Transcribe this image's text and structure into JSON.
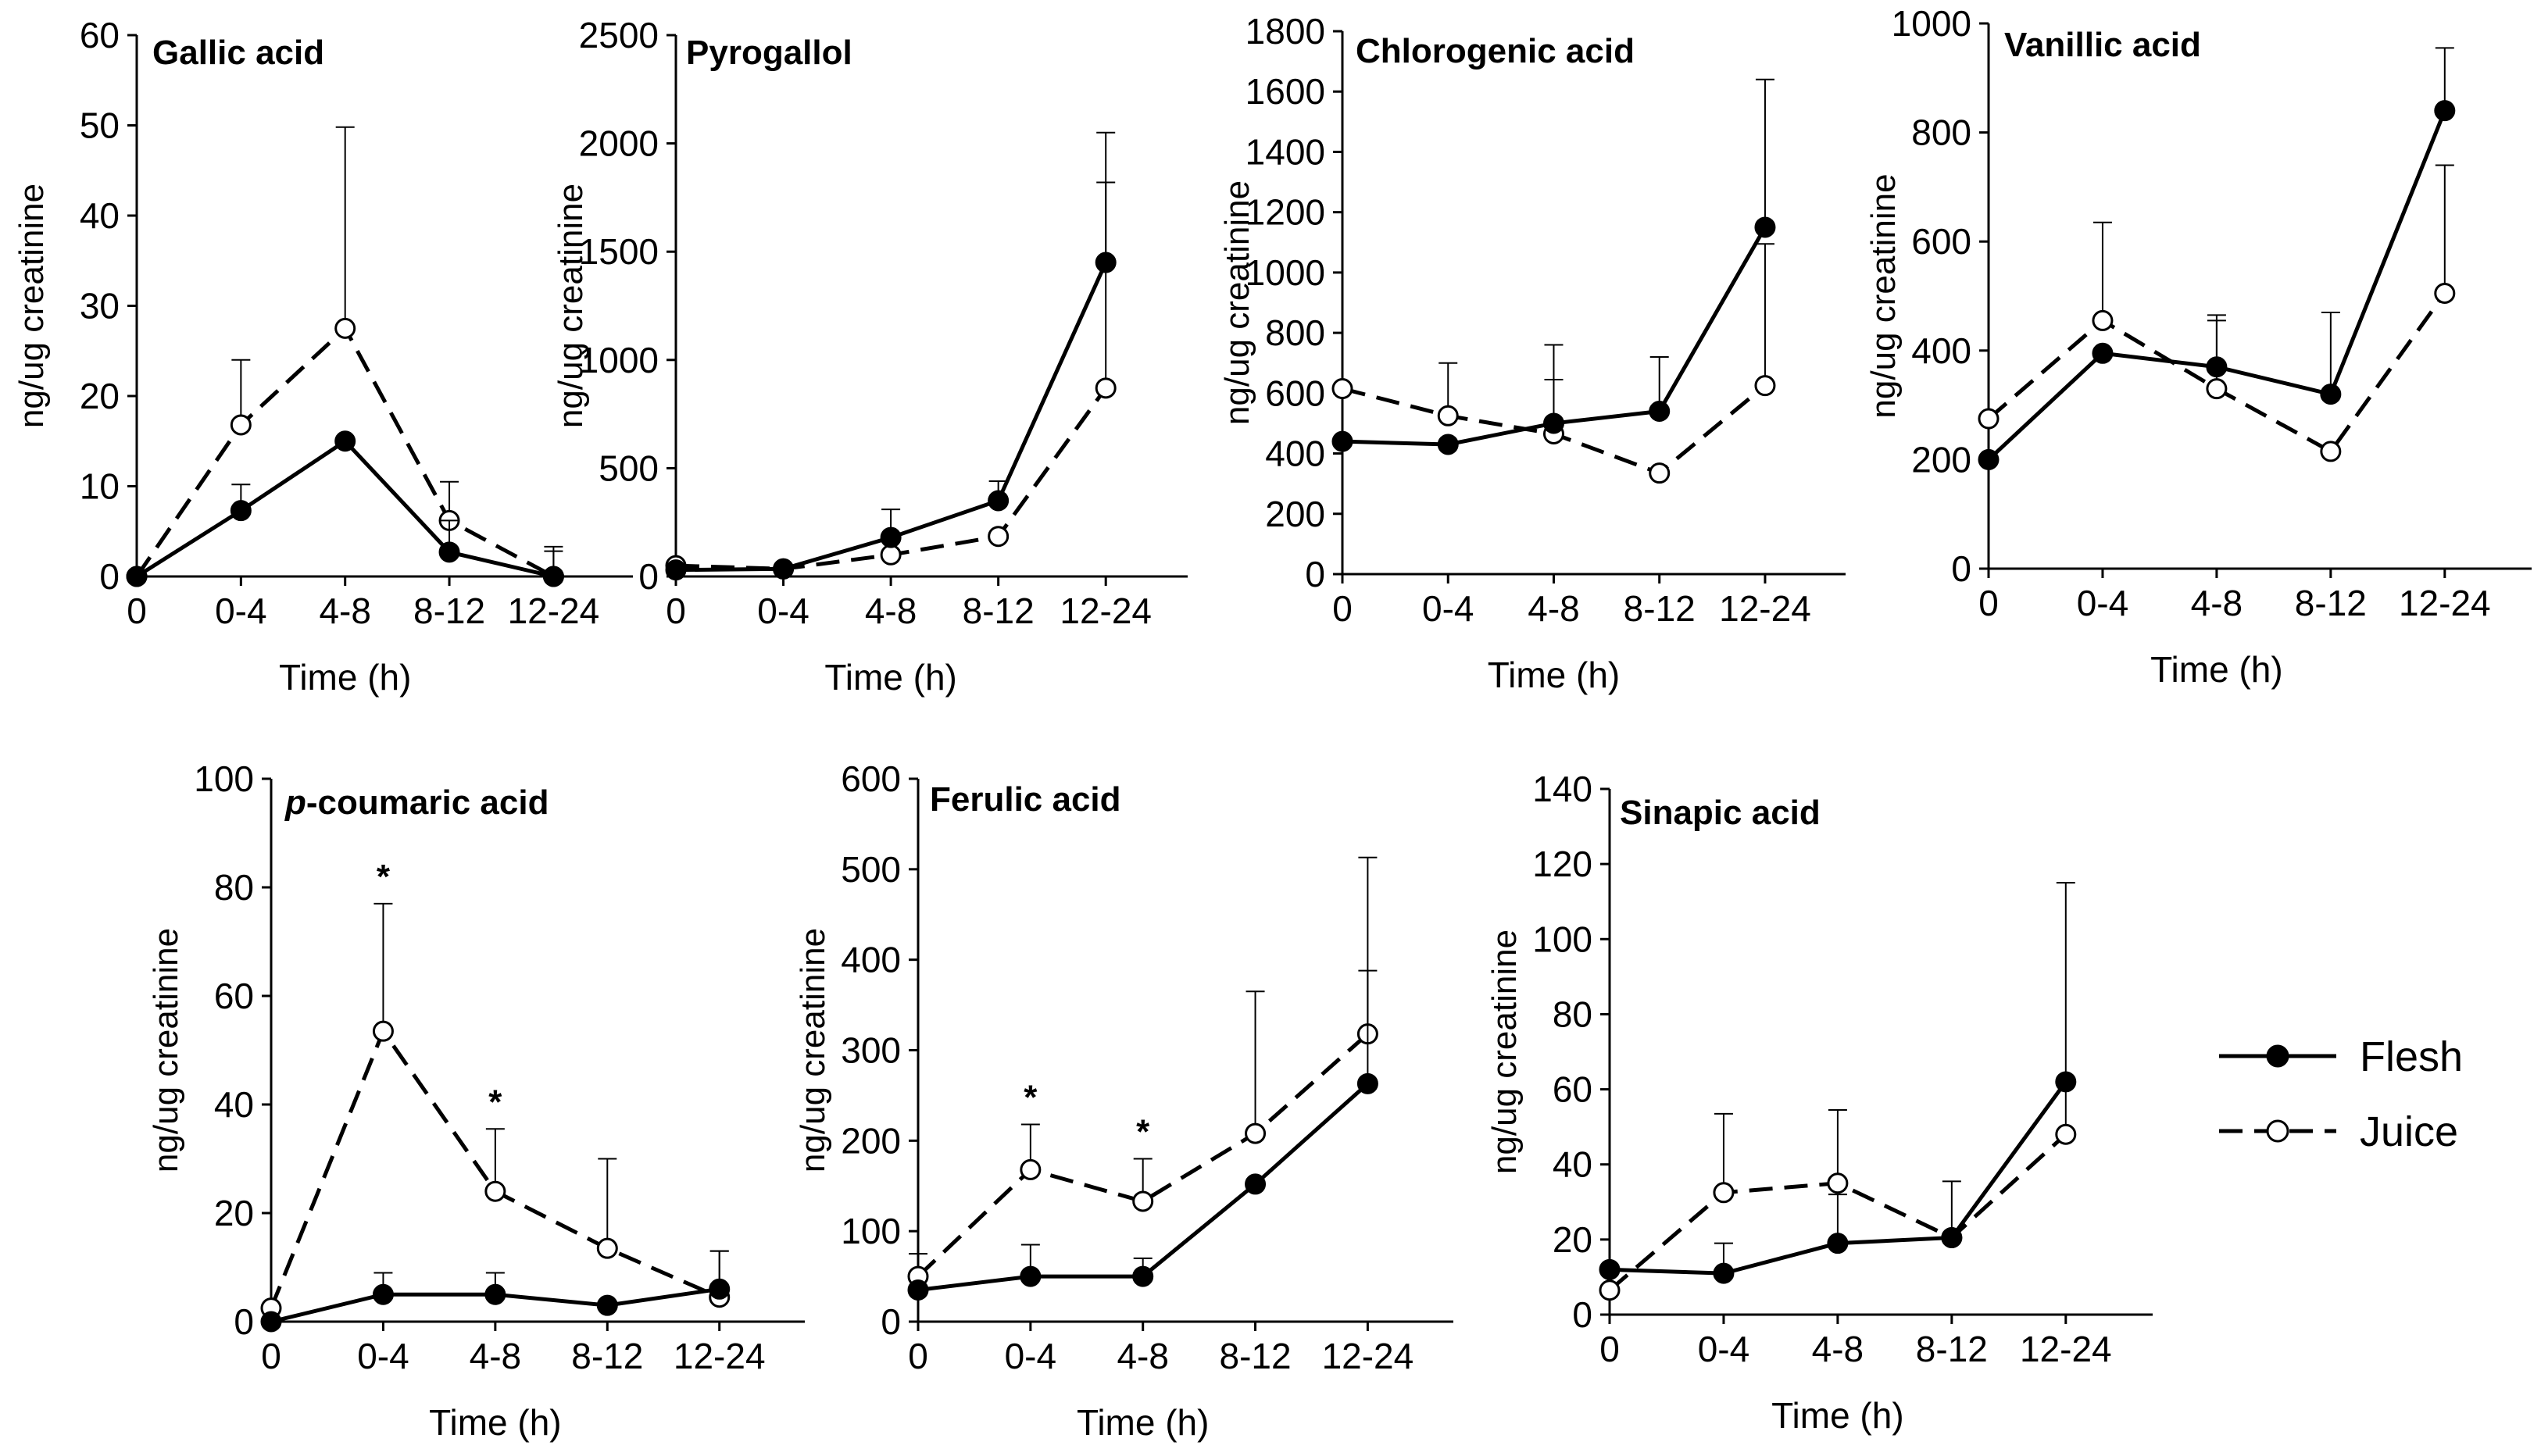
{
  "legend": {
    "flesh": "Flesh",
    "juice": "Juice"
  },
  "chart_data": [
    {
      "type": "line",
      "title": "Gallic acid",
      "xlabel": "Time (h)",
      "ylabel": "ng/ug creatinine",
      "categories": [
        "0",
        "0-4",
        "4-8",
        "8-12",
        "12-24"
      ],
      "ylim": [
        0,
        60
      ],
      "yticks": [
        0,
        10,
        20,
        30,
        40,
        50,
        60
      ],
      "series": [
        {
          "name": "Flesh",
          "style": "solid-filled",
          "values": [
            0,
            7.3,
            15.0,
            2.7,
            0
          ],
          "err": [
            0,
            2.9,
            0,
            3.5,
            2.8
          ]
        },
        {
          "name": "Juice",
          "style": "dashed-open",
          "values": [
            0,
            16.8,
            27.5,
            6.2,
            0
          ],
          "err": [
            0,
            7.2,
            22.3,
            4.3,
            3.3
          ]
        }
      ],
      "significance": []
    },
    {
      "type": "line",
      "title": "Pyrogallol",
      "xlabel": "Time (h)",
      "ylabel": "ng/ug creatinine",
      "categories": [
        "0",
        "0-4",
        "4-8",
        "8-12",
        "12-24"
      ],
      "ylim": [
        0,
        2500
      ],
      "yticks": [
        0,
        500,
        1000,
        1500,
        2000,
        2500
      ],
      "series": [
        {
          "name": "Flesh",
          "style": "solid-filled",
          "values": [
            30,
            35,
            180,
            350,
            1450
          ],
          "err": [
            0,
            0,
            130,
            90,
            600
          ]
        },
        {
          "name": "Juice",
          "style": "dashed-open",
          "values": [
            50,
            35,
            100,
            185,
            870
          ],
          "err": [
            0,
            0,
            0,
            0,
            950
          ]
        }
      ],
      "significance": []
    },
    {
      "type": "line",
      "title": "Chlorogenic acid",
      "xlabel": "Time (h)",
      "ylabel": "ng/ug creatinine",
      "categories": [
        "0",
        "0-4",
        "4-8",
        "8-12",
        "12-24"
      ],
      "ylim": [
        0,
        1800
      ],
      "yticks": [
        0,
        200,
        400,
        600,
        800,
        1000,
        1200,
        1400,
        1600,
        1800
      ],
      "series": [
        {
          "name": "Flesh",
          "style": "solid-filled",
          "values": [
            440,
            430,
            500,
            540,
            1150
          ],
          "err": [
            0,
            0,
            260,
            180,
            490
          ]
        },
        {
          "name": "Juice",
          "style": "dashed-open",
          "values": [
            615,
            525,
            465,
            335,
            625
          ],
          "err": [
            0,
            175,
            180,
            0,
            470
          ]
        }
      ],
      "significance": []
    },
    {
      "type": "line",
      "title": "Vanillic acid",
      "xlabel": "Time (h)",
      "ylabel": "ng/ug creatinine",
      "categories": [
        "0",
        "0-4",
        "4-8",
        "8-12",
        "12-24"
      ],
      "ylim": [
        0,
        1000
      ],
      "yticks": [
        0,
        200,
        400,
        600,
        800,
        1000
      ],
      "series": [
        {
          "name": "Flesh",
          "style": "solid-filled",
          "values": [
            200,
            395,
            370,
            320,
            840
          ],
          "err": [
            0,
            0,
            95,
            150,
            115
          ]
        },
        {
          "name": "Juice",
          "style": "dashed-open",
          "values": [
            275,
            455,
            330,
            215,
            505
          ],
          "err": [
            0,
            180,
            125,
            0,
            235
          ]
        }
      ],
      "significance": []
    },
    {
      "type": "line",
      "title": "p-coumaric acid",
      "title_italic_prefix": "p",
      "title_rest": "-coumaric acid",
      "xlabel": "Time (h)",
      "ylabel": "ng/ug creatinine",
      "categories": [
        "0",
        "0-4",
        "4-8",
        "8-12",
        "12-24"
      ],
      "ylim": [
        0,
        100
      ],
      "yticks": [
        0,
        20,
        40,
        60,
        80,
        100
      ],
      "series": [
        {
          "name": "Flesh",
          "style": "solid-filled",
          "values": [
            0,
            5,
            5,
            3,
            6
          ],
          "err": [
            0,
            4,
            4,
            0,
            7
          ]
        },
        {
          "name": "Juice",
          "style": "dashed-open",
          "values": [
            2.5,
            53.5,
            24,
            13.5,
            4.5
          ],
          "err": [
            0,
            23.5,
            11.5,
            16.5,
            8.5
          ]
        }
      ],
      "significance": [
        {
          "category": "0-4",
          "label": "*"
        },
        {
          "category": "4-8",
          "label": "*"
        }
      ]
    },
    {
      "type": "line",
      "title": "Ferulic acid",
      "xlabel": "Time (h)",
      "ylabel": "ng/ug creatinine",
      "categories": [
        "0",
        "0-4",
        "4-8",
        "8-12",
        "12-24"
      ],
      "ylim": [
        0,
        600
      ],
      "yticks": [
        0,
        100,
        200,
        300,
        400,
        500,
        600
      ],
      "series": [
        {
          "name": "Flesh",
          "style": "solid-filled",
          "values": [
            35,
            50,
            50,
            152,
            263
          ],
          "err": [
            0,
            35,
            20,
            0,
            125
          ]
        },
        {
          "name": "Juice",
          "style": "dashed-open",
          "values": [
            50,
            168,
            133,
            208,
            318
          ],
          "err": [
            25,
            50,
            47,
            157,
            195
          ]
        }
      ],
      "significance": [
        {
          "category": "0-4",
          "label": "*"
        },
        {
          "category": "4-8",
          "label": "*"
        }
      ]
    },
    {
      "type": "line",
      "title": "Sinapic acid",
      "xlabel": "Time (h)",
      "ylabel": "ng/ug creatinine",
      "categories": [
        "0",
        "0-4",
        "4-8",
        "8-12",
        "12-24"
      ],
      "ylim": [
        0,
        140
      ],
      "yticks": [
        0,
        20,
        40,
        60,
        80,
        100,
        120,
        140
      ],
      "series": [
        {
          "name": "Flesh",
          "style": "solid-filled",
          "values": [
            12,
            11,
            19,
            20.5,
            62
          ],
          "err": [
            0,
            8,
            13,
            15,
            0
          ]
        },
        {
          "name": "Juice",
          "style": "dashed-open",
          "values": [
            6.5,
            32.5,
            35,
            20.5,
            48
          ],
          "err": [
            0,
            21,
            19.5,
            0,
            67
          ]
        }
      ],
      "significance": []
    }
  ]
}
